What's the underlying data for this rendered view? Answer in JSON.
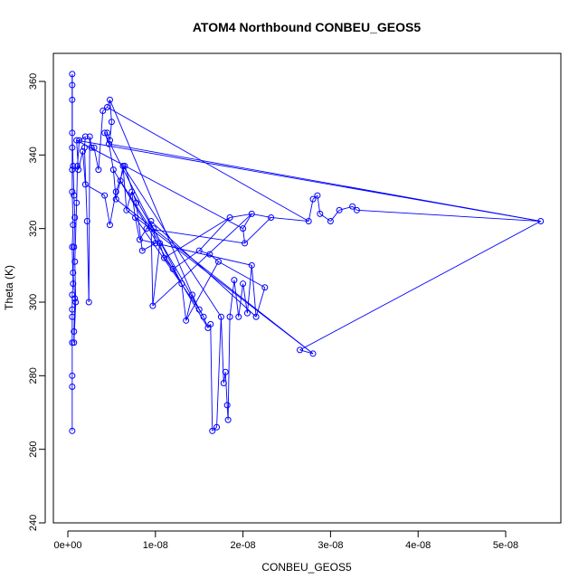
{
  "chart_data": {
    "type": "line",
    "title": "ATOM4 Northbound CONBEU_GEOS5",
    "xlabel": "CONBEU_GEOS5",
    "ylabel": "Theta (K)",
    "xlim": [
      0,
      5.6e-08
    ],
    "ylim": [
      240,
      368
    ],
    "x_ticks": [
      0,
      1e-08,
      2e-08,
      3e-08,
      4e-08,
      5e-08
    ],
    "x_tick_labels": [
      "0e+00",
      "1e-08",
      "2e-08",
      "3e-08",
      "4e-08",
      "5e-08"
    ],
    "y_ticks": [
      240,
      260,
      280,
      300,
      320,
      340,
      360
    ],
    "y_tick_labels": [
      "240",
      "260",
      "280",
      "300",
      "320",
      "340",
      "360"
    ],
    "grid": false,
    "legend": "none",
    "series": [
      {
        "color": "#0000ff",
        "marker": "open-circle",
        "points": [
          [
            5e-10,
            265
          ],
          [
            5e-10,
            277
          ],
          [
            5e-10,
            280
          ],
          [
            5e-10,
            289
          ],
          [
            5e-10,
            296
          ],
          [
            5e-10,
            298
          ],
          [
            5e-10,
            302
          ],
          [
            6e-10,
            305
          ],
          [
            5e-10,
            315
          ],
          [
            6e-10,
            321
          ],
          [
            5e-10,
            330
          ],
          [
            5e-10,
            336
          ],
          [
            5e-10,
            342
          ],
          [
            5e-10,
            355
          ],
          [
            5e-10,
            359
          ],
          [
            5e-10,
            362
          ],
          [
            5e-10,
            346
          ],
          [
            6e-10,
            337
          ],
          [
            7e-10,
            329
          ],
          [
            8e-10,
            323
          ],
          [
            7e-10,
            315
          ],
          [
            6e-10,
            308
          ],
          [
            8e-10,
            301
          ],
          [
            7e-10,
            292
          ],
          [
            7e-10,
            289
          ],
          [
            9e-10,
            300
          ],
          [
            8e-10,
            311
          ],
          [
            1e-09,
            327
          ],
          [
            1.1e-09,
            337
          ],
          [
            1.3e-09,
            344
          ],
          [
            2e-09,
            345
          ],
          [
            1.9e-09,
            342
          ],
          [
            2.2e-09,
            322
          ],
          [
            2.4e-09,
            300
          ],
          [
            2.5e-09,
            345
          ],
          [
            2.7e-09,
            342
          ],
          [
            3e-09,
            342
          ],
          [
            3.5e-09,
            336
          ],
          [
            4e-09,
            352
          ],
          [
            4.5e-09,
            353
          ],
          [
            4.8e-09,
            355
          ],
          [
            5e-09,
            349
          ],
          [
            4.8e-09,
            344
          ],
          [
            4.5e-09,
            346
          ],
          [
            4.2e-09,
            346
          ],
          [
            4.7e-09,
            343
          ],
          [
            5.2e-09,
            336
          ],
          [
            5.5e-09,
            328
          ],
          [
            6e-09,
            333
          ],
          [
            6.3e-09,
            337
          ],
          [
            6.7e-09,
            325
          ],
          [
            7.3e-09,
            330
          ],
          [
            7.7e-09,
            323
          ],
          [
            8.2e-09,
            317
          ],
          [
            9e-09,
            320
          ],
          [
            9.5e-09,
            322
          ],
          [
            9.7e-09,
            299
          ],
          [
            1.05e-08,
            316
          ],
          [
            1.1e-08,
            312
          ],
          [
            1.2e-08,
            309
          ],
          [
            1.3e-08,
            305
          ],
          [
            1.35e-08,
            295
          ],
          [
            1.42e-08,
            302
          ],
          [
            1.5e-08,
            298
          ],
          [
            1.55e-08,
            296
          ],
          [
            1.6e-08,
            293
          ],
          [
            1.63e-08,
            294
          ],
          [
            1.65e-08,
            265
          ],
          [
            1.7e-08,
            266
          ],
          [
            1.75e-08,
            296
          ],
          [
            1.78e-08,
            278
          ],
          [
            1.8e-08,
            281
          ],
          [
            1.82e-08,
            272
          ],
          [
            1.83e-08,
            268
          ],
          [
            1.85e-08,
            296
          ],
          [
            1.9e-08,
            306
          ],
          [
            1.95e-08,
            296
          ],
          [
            2e-08,
            305
          ],
          [
            2.05e-08,
            297
          ],
          [
            2.1e-08,
            310
          ],
          [
            2.15e-08,
            296
          ],
          [
            2.25e-08,
            304
          ],
          [
            1.72e-08,
            311
          ],
          [
            1.62e-08,
            313
          ],
          [
            1.5e-08,
            314
          ],
          [
            1.85e-08,
            323
          ],
          [
            2.1e-08,
            324
          ],
          [
            2.32e-08,
            323
          ],
          [
            2.75e-08,
            322
          ],
          [
            2.8e-08,
            328
          ],
          [
            2.85e-08,
            329
          ],
          [
            2.88e-08,
            324
          ],
          [
            3e-08,
            322
          ],
          [
            3.1e-08,
            325
          ],
          [
            3.25e-08,
            326
          ],
          [
            3.3e-08,
            325
          ],
          [
            5.4e-08,
            322
          ],
          [
            2.65e-08,
            287
          ],
          [
            2.8e-08,
            286
          ],
          [
            9.8e-09,
            320
          ],
          [
            1e-08,
            316
          ],
          [
            8.5e-09,
            314
          ],
          [
            7.8e-09,
            327
          ],
          [
            6.5e-09,
            337
          ],
          [
            5.5e-09,
            330
          ],
          [
            4.8e-09,
            321
          ],
          [
            4.2e-09,
            329
          ],
          [
            2e-09,
            332
          ],
          [
            1.7e-09,
            341
          ],
          [
            1.2e-09,
            336
          ],
          [
            1e-09,
            344
          ],
          [
            2e-08,
            320
          ],
          [
            2.02e-08,
            316
          ]
        ],
        "segments": [
          [
            0,
            1
          ],
          [
            1,
            2
          ],
          [
            2,
            3
          ],
          [
            3,
            4
          ],
          [
            4,
            5
          ],
          [
            5,
            6
          ],
          [
            6,
            7
          ],
          [
            7,
            8
          ],
          [
            8,
            9
          ],
          [
            9,
            10
          ],
          [
            10,
            11
          ],
          [
            11,
            12
          ],
          [
            12,
            13
          ],
          [
            13,
            14
          ],
          [
            14,
            15
          ],
          [
            15,
            16
          ],
          [
            16,
            17
          ],
          [
            17,
            18
          ],
          [
            18,
            19
          ],
          [
            19,
            20
          ],
          [
            20,
            21
          ],
          [
            21,
            22
          ],
          [
            22,
            23
          ],
          [
            23,
            24
          ],
          [
            24,
            25
          ],
          [
            25,
            26
          ],
          [
            26,
            27
          ],
          [
            27,
            28
          ],
          [
            28,
            29
          ],
          [
            29,
            30
          ],
          [
            30,
            31
          ],
          [
            31,
            32
          ],
          [
            32,
            33
          ],
          [
            33,
            34
          ],
          [
            34,
            35
          ],
          [
            35,
            36
          ],
          [
            36,
            37
          ],
          [
            37,
            38
          ],
          [
            38,
            39
          ],
          [
            39,
            40
          ],
          [
            40,
            41
          ],
          [
            41,
            42
          ],
          [
            42,
            43
          ],
          [
            43,
            44
          ],
          [
            44,
            45
          ],
          [
            45,
            46
          ],
          [
            46,
            47
          ],
          [
            47,
            48
          ],
          [
            48,
            49
          ],
          [
            49,
            50
          ],
          [
            50,
            51
          ],
          [
            51,
            52
          ],
          [
            52,
            53
          ],
          [
            53,
            54
          ],
          [
            54,
            55
          ],
          [
            55,
            56
          ],
          [
            56,
            57
          ],
          [
            57,
            58
          ],
          [
            58,
            59
          ],
          [
            59,
            60
          ],
          [
            60,
            61
          ],
          [
            61,
            62
          ],
          [
            62,
            63
          ],
          [
            63,
            64
          ],
          [
            64,
            65
          ],
          [
            65,
            66
          ],
          [
            66,
            67
          ],
          [
            67,
            68
          ],
          [
            68,
            69
          ],
          [
            69,
            70
          ],
          [
            70,
            71
          ],
          [
            71,
            72
          ],
          [
            72,
            73
          ],
          [
            73,
            74
          ],
          [
            74,
            75
          ],
          [
            75,
            76
          ],
          [
            76,
            77
          ],
          [
            77,
            78
          ],
          [
            78,
            79
          ],
          [
            79,
            80
          ],
          [
            80,
            81
          ],
          [
            81,
            82
          ],
          [
            82,
            83
          ],
          [
            83,
            84
          ],
          [
            84,
            85
          ],
          [
            85,
            86
          ],
          [
            86,
            87
          ],
          [
            87,
            88
          ],
          [
            88,
            89
          ],
          [
            89,
            90
          ],
          [
            90,
            91
          ],
          [
            91,
            92
          ],
          [
            92,
            93
          ],
          [
            93,
            94
          ],
          [
            94,
            95
          ],
          [
            95,
            96
          ],
          [
            96,
            97
          ],
          [
            97,
            98
          ],
          [
            98,
            99
          ],
          [
            99,
            100
          ],
          [
            100,
            101
          ],
          [
            101,
            102
          ],
          [
            102,
            103
          ],
          [
            103,
            104
          ],
          [
            104,
            105
          ],
          [
            105,
            106
          ],
          [
            106,
            107
          ],
          [
            107,
            108
          ],
          [
            108,
            109
          ],
          [
            109,
            110
          ],
          [
            110,
            111
          ],
          [
            111,
            112
          ],
          [
            112,
            113
          ],
          [
            39,
            88
          ],
          [
            45,
            96
          ],
          [
            50,
            98
          ],
          [
            47,
            99
          ],
          [
            48,
            57
          ],
          [
            40,
            62
          ],
          [
            44,
            60
          ],
          [
            46,
            65
          ],
          [
            49,
            69
          ],
          [
            51,
            64
          ],
          [
            52,
            63
          ],
          [
            53,
            79
          ],
          [
            55,
            80
          ],
          [
            56,
            86
          ],
          [
            58,
            85
          ],
          [
            59,
            84
          ],
          [
            61,
            82
          ],
          [
            54,
            112
          ],
          [
            87,
            112
          ],
          [
            111,
            86
          ],
          [
            110,
            96
          ]
        ]
      }
    ]
  }
}
